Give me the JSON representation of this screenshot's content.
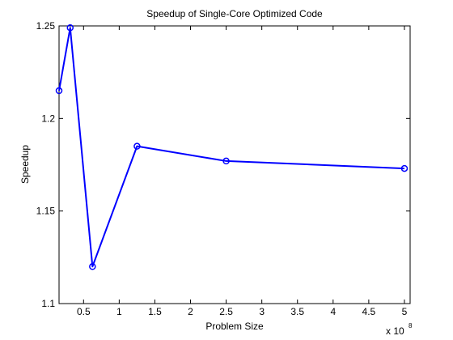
{
  "chart_data": {
    "type": "line",
    "title": "Speedup of Single-Core Optimized Code",
    "xlabel": "Problem Size",
    "ylabel": "Speedup",
    "x_scale_note": {
      "prefix": "x 10",
      "exponent": "8"
    },
    "xlim": [
      0.15625,
      5.08
    ],
    "ylim": [
      1.1,
      1.25
    ],
    "xticks": [
      0.5,
      1,
      1.5,
      2,
      2.5,
      3,
      3.5,
      4,
      4.5,
      5
    ],
    "xtick_labels": [
      "0.5",
      "1",
      "1.5",
      "2",
      "2.5",
      "3",
      "3.5",
      "4",
      "4.5",
      "5"
    ],
    "yticks": [
      1.1,
      1.15,
      1.2,
      1.25
    ],
    "ytick_labels": [
      "1.1",
      "1.15",
      "1.2",
      "1.25"
    ],
    "grid": false,
    "series": [
      {
        "name": "Speedup",
        "color": "#0000ff",
        "marker": "circle",
        "x": [
          0.15625,
          0.3125,
          0.625,
          1.25,
          2.5,
          5.0
        ],
        "values": [
          1.215,
          1.249,
          1.12,
          1.185,
          1.177,
          1.173
        ]
      }
    ]
  }
}
